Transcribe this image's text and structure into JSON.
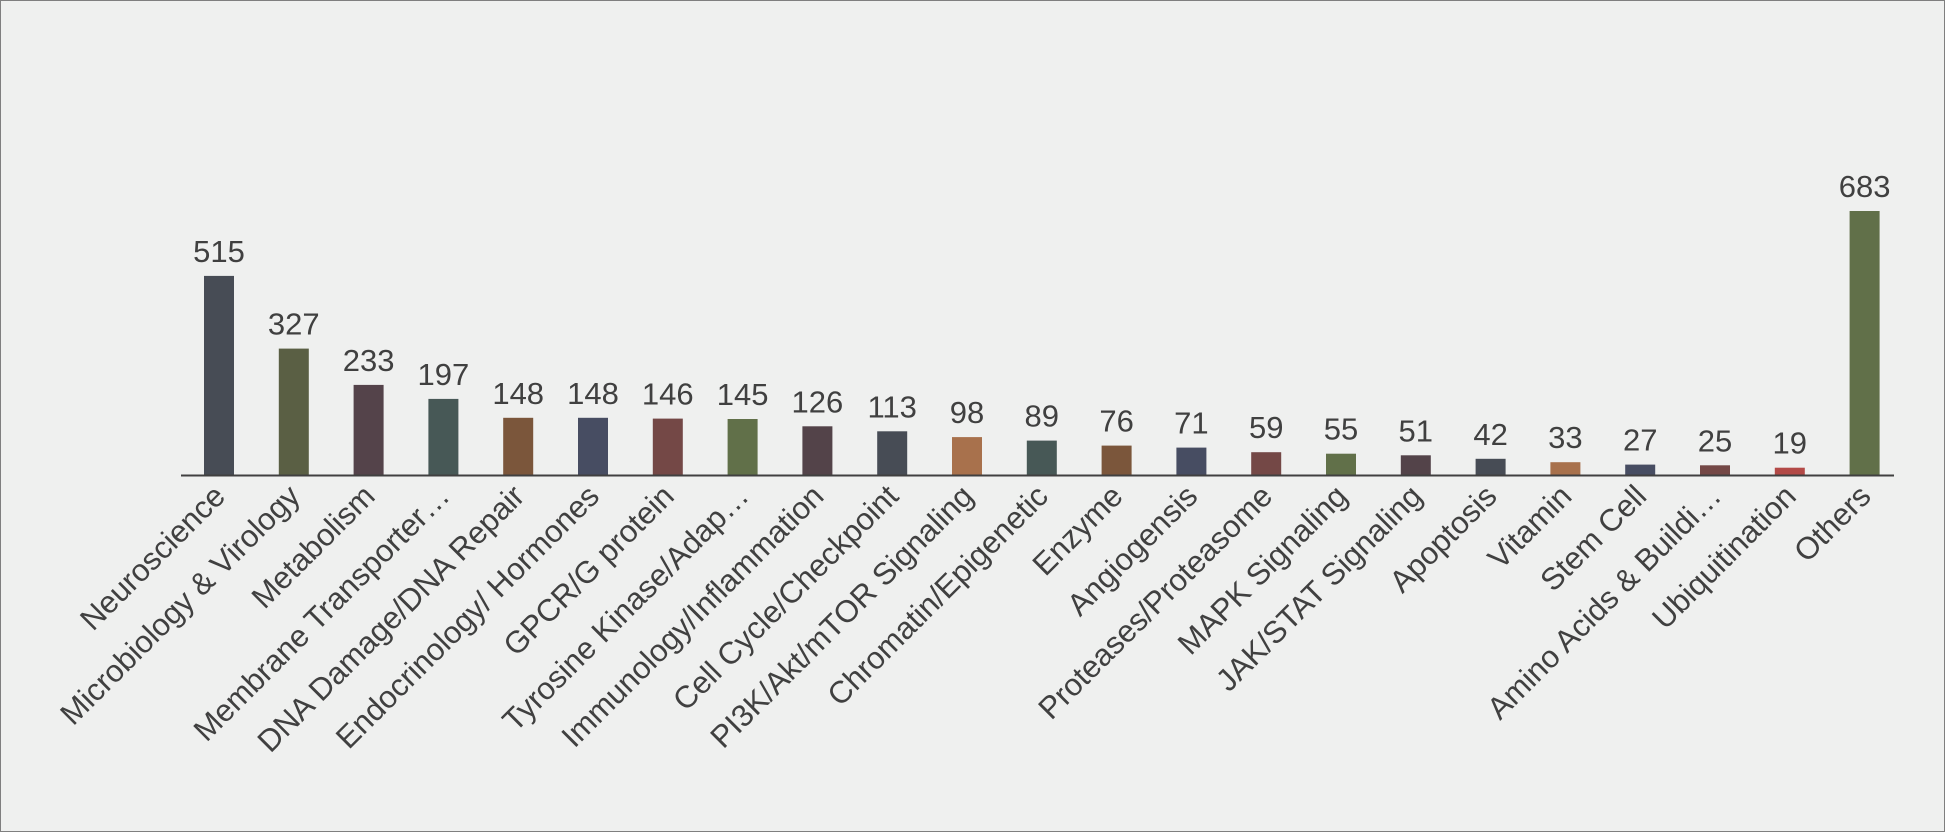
{
  "chart_data": {
    "type": "bar",
    "categories": [
      "Neuroscience",
      "Microbiology & Virology",
      "Metabolism",
      "Membrane Transporter…",
      "DNA Damage/DNA Repair",
      "Endocrinology/ Hormones",
      "GPCR/G protein",
      "Tyrosine Kinase/Adap…",
      "Immunology/Inflammation",
      "Cell Cycle/Checkpoint",
      "PI3K/Akt/mTOR Signaling",
      "Chromatin/Epigenetic",
      "Enzyme",
      "Angiogensis",
      "Proteases/Proteasome",
      "MAPK Signaling",
      "JAK/STAT Signaling",
      "Apoptosis",
      "Vitamin",
      "Stem Cell",
      "Amino Acids & Buildi…",
      "Ubiquitination",
      "Others"
    ],
    "values": [
      515,
      327,
      233,
      197,
      148,
      148,
      146,
      145,
      126,
      113,
      98,
      89,
      76,
      71,
      59,
      55,
      51,
      42,
      33,
      27,
      25,
      19,
      683
    ],
    "colors": [
      "#474c55",
      "#5a5f44",
      "#54434a",
      "#475856",
      "#7b563b",
      "#474d62",
      "#744846",
      "#617049",
      "#534349",
      "#474c55",
      "#a8714c",
      "#475856",
      "#7b563b",
      "#474d62",
      "#744846",
      "#617049",
      "#534349",
      "#474c55",
      "#a8714c",
      "#474d62",
      "#744846",
      "#b34a47",
      "#617049"
    ],
    "data_labels": [
      "515",
      "327",
      "233",
      "197",
      "148",
      "148",
      "146",
      "145",
      "126",
      "113",
      "98",
      "89",
      "76",
      "71",
      "59",
      "55",
      "51",
      "42",
      "33",
      "27",
      "25",
      "19",
      "683"
    ],
    "ylim": [
      0,
      683
    ],
    "grid": false,
    "legend": "none",
    "title": "",
    "xlabel": "",
    "ylabel": ""
  }
}
